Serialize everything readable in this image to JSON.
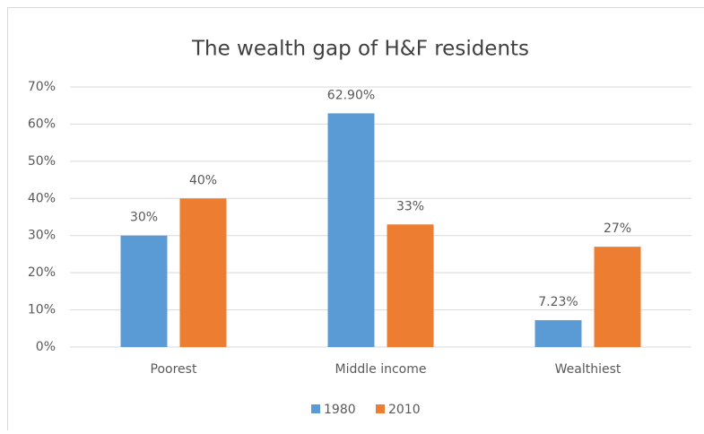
{
  "chart_data": {
    "type": "bar",
    "title": "The wealth gap of H&F residents",
    "categories": [
      "Poorest",
      "Middle income",
      "Wealthiest"
    ],
    "series": [
      {
        "name": "1980",
        "color": "#5b9bd5",
        "values": [
          30,
          62.9,
          7.23
        ],
        "value_labels": [
          "30%",
          "62.90%",
          "7.23%"
        ]
      },
      {
        "name": "2010",
        "color": "#ed7d31",
        "values": [
          40,
          33,
          27
        ],
        "value_labels": [
          "40%",
          "33%",
          "27%"
        ]
      }
    ],
    "ylim": [
      0,
      70
    ],
    "yticks": [
      {
        "value": 0,
        "label": "0%"
      },
      {
        "value": 10,
        "label": "10%"
      },
      {
        "value": 20,
        "label": "20%"
      },
      {
        "value": 30,
        "label": "30%"
      },
      {
        "value": 40,
        "label": "40%"
      },
      {
        "value": 50,
        "label": "50%"
      },
      {
        "value": 60,
        "label": "60%"
      },
      {
        "value": 70,
        "label": "70%"
      }
    ],
    "grid": true,
    "legend": "bottom"
  }
}
